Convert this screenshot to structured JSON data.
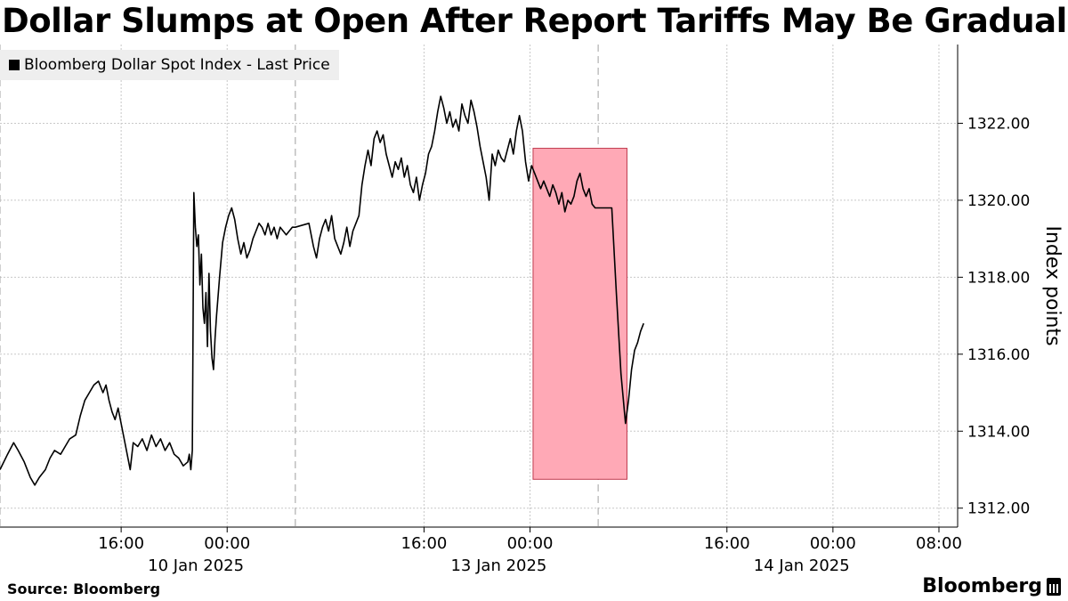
{
  "header": {
    "title": "Dollar Slumps at Open After Report Tariffs May Be Gradual"
  },
  "legend": {
    "label": "Bloomberg Dollar Spot Index - Last Price"
  },
  "footer": {
    "source": "Source: Bloomberg",
    "brand": "Bloomberg"
  },
  "colors": {
    "line": "#000000",
    "highlight_fill": "#ffa9b6",
    "highlight_stroke": "#c0394d",
    "grid": "#c8c8c8",
    "legend_bg": "#eeeeee"
  },
  "chart_data": {
    "type": "line",
    "title": "Dollar Slumps at Open After Report Tariffs May Be Gradual",
    "ylabel": "Index points",
    "ylim": [
      1311.6,
      1324.0
    ],
    "yticks": [
      1312,
      1314,
      1316,
      1318,
      1320,
      1322
    ],
    "ytick_labels": [
      "1312.00",
      "1314.00",
      "1316.00",
      "1318.00",
      "1320.00",
      "1322.00"
    ],
    "y_axis_side": "right",
    "grid": true,
    "legend_position": "top-left",
    "x_tick_labels": [
      {
        "time": "16:00",
        "date": "10 Jan 2025"
      },
      {
        "time": "00:00",
        "date": ""
      },
      {
        "time": "16:00",
        "date": "13 Jan 2025"
      },
      {
        "time": "00:00",
        "date": ""
      },
      {
        "time": "16:00",
        "date": "14 Jan 2025"
      },
      {
        "time": "00:00",
        "date": ""
      },
      {
        "time": "08:00",
        "date": ""
      }
    ],
    "x_range_hours": [
      0,
      63
    ],
    "x_tick_hours": [
      8,
      15,
      28,
      35,
      48,
      55,
      62
    ],
    "date_label_hours": [
      8,
      28,
      48
    ],
    "day_boundary_hours": [
      0,
      19.5,
      39.5
    ],
    "series": [
      {
        "name": "Bloomberg Dollar Spot Index - Last Price",
        "points": [
          [
            0.0,
            1313.0
          ],
          [
            0.5,
            1313.4
          ],
          [
            0.9,
            1313.7
          ],
          [
            1.2,
            1313.5
          ],
          [
            1.6,
            1313.2
          ],
          [
            2.0,
            1312.8
          ],
          [
            2.3,
            1312.6
          ],
          [
            2.6,
            1312.8
          ],
          [
            3.0,
            1313.0
          ],
          [
            3.3,
            1313.3
          ],
          [
            3.6,
            1313.5
          ],
          [
            4.0,
            1313.4
          ],
          [
            4.3,
            1313.6
          ],
          [
            4.6,
            1313.8
          ],
          [
            5.0,
            1313.9
          ],
          [
            5.3,
            1314.4
          ],
          [
            5.6,
            1314.8
          ],
          [
            5.9,
            1315.0
          ],
          [
            6.2,
            1315.2
          ],
          [
            6.5,
            1315.3
          ],
          [
            6.8,
            1315.0
          ],
          [
            7.0,
            1315.2
          ],
          [
            7.2,
            1314.8
          ],
          [
            7.4,
            1314.5
          ],
          [
            7.6,
            1314.3
          ],
          [
            7.8,
            1314.6
          ],
          [
            8.0,
            1314.2
          ],
          [
            8.2,
            1313.8
          ],
          [
            8.4,
            1313.4
          ],
          [
            8.6,
            1313.0
          ],
          [
            8.8,
            1313.7
          ],
          [
            9.1,
            1313.6
          ],
          [
            9.4,
            1313.8
          ],
          [
            9.7,
            1313.5
          ],
          [
            10.0,
            1313.9
          ],
          [
            10.3,
            1313.6
          ],
          [
            10.6,
            1313.8
          ],
          [
            10.9,
            1313.5
          ],
          [
            11.2,
            1313.7
          ],
          [
            11.5,
            1313.4
          ],
          [
            11.8,
            1313.3
          ],
          [
            12.1,
            1313.1
          ],
          [
            12.4,
            1313.2
          ],
          [
            12.5,
            1313.4
          ],
          [
            12.6,
            1313.0
          ],
          [
            12.7,
            1313.5
          ],
          [
            12.8,
            1320.2
          ],
          [
            12.9,
            1319.3
          ],
          [
            13.0,
            1318.8
          ],
          [
            13.1,
            1319.1
          ],
          [
            13.2,
            1317.8
          ],
          [
            13.3,
            1318.6
          ],
          [
            13.4,
            1317.2
          ],
          [
            13.5,
            1316.8
          ],
          [
            13.6,
            1317.6
          ],
          [
            13.7,
            1316.2
          ],
          [
            13.8,
            1318.1
          ],
          [
            13.9,
            1316.6
          ],
          [
            14.0,
            1315.9
          ],
          [
            14.1,
            1315.6
          ],
          [
            14.2,
            1316.4
          ],
          [
            14.3,
            1317.0
          ],
          [
            14.5,
            1318.0
          ],
          [
            14.7,
            1318.9
          ],
          [
            14.9,
            1319.3
          ],
          [
            15.1,
            1319.6
          ],
          [
            15.3,
            1319.8
          ],
          [
            15.5,
            1319.5
          ],
          [
            15.7,
            1319.0
          ],
          [
            15.9,
            1318.6
          ],
          [
            16.1,
            1318.9
          ],
          [
            16.3,
            1318.5
          ],
          [
            16.5,
            1318.7
          ],
          [
            16.7,
            1319.0
          ],
          [
            16.9,
            1319.2
          ],
          [
            17.1,
            1319.4
          ],
          [
            17.3,
            1319.3
          ],
          [
            17.5,
            1319.1
          ],
          [
            17.7,
            1319.4
          ],
          [
            17.9,
            1319.1
          ],
          [
            18.1,
            1319.3
          ],
          [
            18.3,
            1319.0
          ],
          [
            18.5,
            1319.3
          ],
          [
            18.7,
            1319.2
          ],
          [
            18.9,
            1319.1
          ],
          [
            19.1,
            1319.2
          ],
          [
            19.3,
            1319.3
          ],
          [
            19.5,
            1319.3
          ],
          [
            20.4,
            1319.4
          ],
          [
            20.7,
            1318.8
          ],
          [
            20.9,
            1318.5
          ],
          [
            21.1,
            1319.0
          ],
          [
            21.3,
            1319.3
          ],
          [
            21.5,
            1319.5
          ],
          [
            21.7,
            1319.2
          ],
          [
            21.9,
            1319.6
          ],
          [
            22.1,
            1319.0
          ],
          [
            22.3,
            1318.8
          ],
          [
            22.5,
            1318.6
          ],
          [
            22.7,
            1318.9
          ],
          [
            22.9,
            1319.3
          ],
          [
            23.1,
            1318.8
          ],
          [
            23.3,
            1319.2
          ],
          [
            23.5,
            1319.4
          ],
          [
            23.7,
            1319.6
          ],
          [
            23.9,
            1320.4
          ],
          [
            24.1,
            1320.9
          ],
          [
            24.3,
            1321.3
          ],
          [
            24.5,
            1320.9
          ],
          [
            24.7,
            1321.6
          ],
          [
            24.9,
            1321.8
          ],
          [
            25.1,
            1321.5
          ],
          [
            25.3,
            1321.7
          ],
          [
            25.5,
            1321.2
          ],
          [
            25.7,
            1320.9
          ],
          [
            25.9,
            1320.6
          ],
          [
            26.1,
            1321.0
          ],
          [
            26.3,
            1320.8
          ],
          [
            26.5,
            1321.1
          ],
          [
            26.7,
            1320.6
          ],
          [
            26.9,
            1320.9
          ],
          [
            27.1,
            1320.4
          ],
          [
            27.3,
            1320.2
          ],
          [
            27.5,
            1320.6
          ],
          [
            27.7,
            1320.0
          ],
          [
            27.9,
            1320.4
          ],
          [
            28.1,
            1320.7
          ],
          [
            28.3,
            1321.2
          ],
          [
            28.5,
            1321.4
          ],
          [
            28.7,
            1321.8
          ],
          [
            28.9,
            1322.3
          ],
          [
            29.1,
            1322.7
          ],
          [
            29.3,
            1322.4
          ],
          [
            29.5,
            1322.0
          ],
          [
            29.7,
            1322.3
          ],
          [
            29.9,
            1321.9
          ],
          [
            30.1,
            1322.1
          ],
          [
            30.3,
            1321.8
          ],
          [
            30.5,
            1322.5
          ],
          [
            30.7,
            1322.2
          ],
          [
            30.9,
            1322.0
          ],
          [
            31.1,
            1322.6
          ],
          [
            31.3,
            1322.3
          ],
          [
            31.5,
            1321.9
          ],
          [
            31.7,
            1321.4
          ],
          [
            31.9,
            1321.0
          ],
          [
            32.1,
            1320.6
          ],
          [
            32.3,
            1320.0
          ],
          [
            32.5,
            1321.2
          ],
          [
            32.7,
            1320.9
          ],
          [
            32.9,
            1321.3
          ],
          [
            33.1,
            1321.1
          ],
          [
            33.3,
            1321.0
          ],
          [
            33.5,
            1321.3
          ],
          [
            33.7,
            1321.6
          ],
          [
            33.9,
            1321.2
          ],
          [
            34.1,
            1321.8
          ],
          [
            34.3,
            1322.2
          ],
          [
            34.5,
            1321.8
          ],
          [
            34.7,
            1321.0
          ],
          [
            34.9,
            1320.5
          ],
          [
            35.1,
            1320.9
          ],
          [
            35.3,
            1320.7
          ],
          [
            35.5,
            1320.5
          ],
          [
            35.7,
            1320.3
          ],
          [
            35.9,
            1320.5
          ],
          [
            36.1,
            1320.3
          ],
          [
            36.3,
            1320.1
          ],
          [
            36.5,
            1320.4
          ],
          [
            36.7,
            1320.2
          ],
          [
            36.9,
            1319.9
          ],
          [
            37.1,
            1320.2
          ],
          [
            37.3,
            1319.7
          ],
          [
            37.5,
            1320.0
          ],
          [
            37.7,
            1319.9
          ],
          [
            37.9,
            1320.1
          ],
          [
            38.1,
            1320.5
          ],
          [
            38.3,
            1320.7
          ],
          [
            38.5,
            1320.3
          ],
          [
            38.7,
            1320.1
          ],
          [
            38.9,
            1320.3
          ],
          [
            39.1,
            1319.9
          ],
          [
            39.3,
            1319.8
          ],
          [
            39.5,
            1319.8
          ],
          [
            40.4,
            1319.8
          ],
          [
            40.7,
            1317.6
          ],
          [
            41.0,
            1315.5
          ],
          [
            41.3,
            1314.2
          ],
          [
            41.5,
            1314.8
          ],
          [
            41.7,
            1315.6
          ],
          [
            41.9,
            1316.1
          ],
          [
            42.1,
            1316.3
          ],
          [
            42.3,
            1316.6
          ],
          [
            42.5,
            1316.8
          ]
        ]
      }
    ],
    "highlight": {
      "x_start": 35.2,
      "x_end": 41.4,
      "y_low": 1312.75,
      "y_high": 1321.35
    }
  }
}
